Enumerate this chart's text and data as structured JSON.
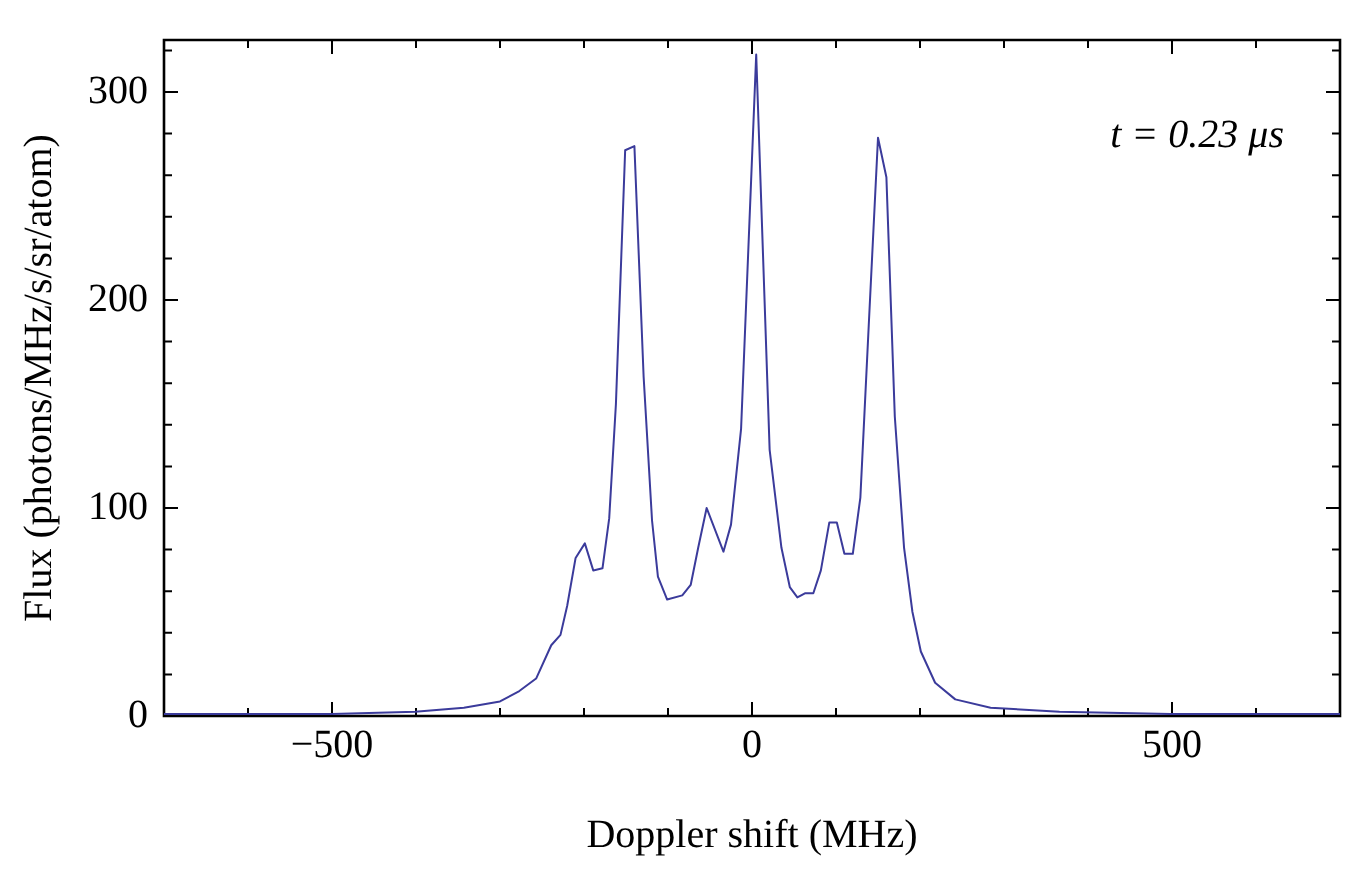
{
  "chart_data": {
    "type": "line",
    "xlabel": "Doppler shift (MHz)",
    "ylabel": "Flux (photons/MHz/s/sr/atom)",
    "annotations": [
      "t = 0.23 μs"
    ],
    "x": [
      -700,
      -500,
      -401,
      -343,
      -300,
      -277,
      -257,
      -239,
      -228,
      -220,
      -210,
      -199,
      -189,
      -178,
      -170,
      -162,
      -151,
      -140,
      -129,
      -119,
      -112,
      -101,
      -83,
      -73,
      -64,
      -54,
      -34,
      -25,
      -13,
      5,
      21,
      35,
      45,
      54,
      63,
      73,
      82,
      92,
      101,
      110,
      120,
      129,
      139,
      150,
      160,
      170,
      181,
      191,
      201,
      218,
      242,
      284,
      366,
      498,
      700
    ],
    "series": [
      {
        "color": "#3b3b9b",
        "values": [
          1,
          1,
          2,
          4,
          7,
          12,
          18,
          34,
          39,
          53,
          76,
          83,
          70,
          71,
          95,
          150,
          272,
          274,
          163,
          94,
          67,
          56,
          58,
          63,
          81,
          100,
          79,
          92,
          138,
          318,
          128,
          81,
          62,
          57,
          59,
          59,
          70,
          93,
          93,
          78,
          78,
          105,
          188,
          278,
          259,
          144,
          81,
          50,
          31,
          16,
          8,
          4,
          2,
          1,
          1
        ]
      }
    ],
    "xlim": [
      -700,
      700
    ],
    "xticks": [
      {
        "value": -600,
        "label": null
      },
      {
        "value": -500,
        "label": "−500"
      },
      {
        "value": -400,
        "label": null
      },
      {
        "value": -300,
        "label": null
      },
      {
        "value": -200,
        "label": null
      },
      {
        "value": -100,
        "label": null
      },
      0,
      {
        "value": 100,
        "label": null
      },
      {
        "value": 200,
        "label": null
      },
      {
        "value": 300,
        "label": null
      },
      {
        "value": 400,
        "label": null
      },
      500,
      {
        "value": 600,
        "label": null
      }
    ],
    "ylim": [
      0,
      325
    ],
    "yticks": [
      0,
      {
        "value": 20,
        "label": null
      },
      {
        "value": 40,
        "label": null
      },
      {
        "value": 60,
        "label": null
      },
      {
        "value": 80,
        "label": null
      },
      100,
      {
        "value": 120,
        "label": null
      },
      {
        "value": 140,
        "label": null
      },
      {
        "value": 160,
        "label": null
      },
      {
        "value": 180,
        "label": null
      },
      200,
      {
        "value": 220,
        "label": null
      },
      {
        "value": 240,
        "label": null
      },
      {
        "value": 260,
        "label": null
      },
      {
        "value": 280,
        "label": null
      },
      300,
      {
        "value": 320,
        "label": null
      }
    ],
    "grid": false,
    "legend": false,
    "marker": "none",
    "line_style": "solid"
  }
}
